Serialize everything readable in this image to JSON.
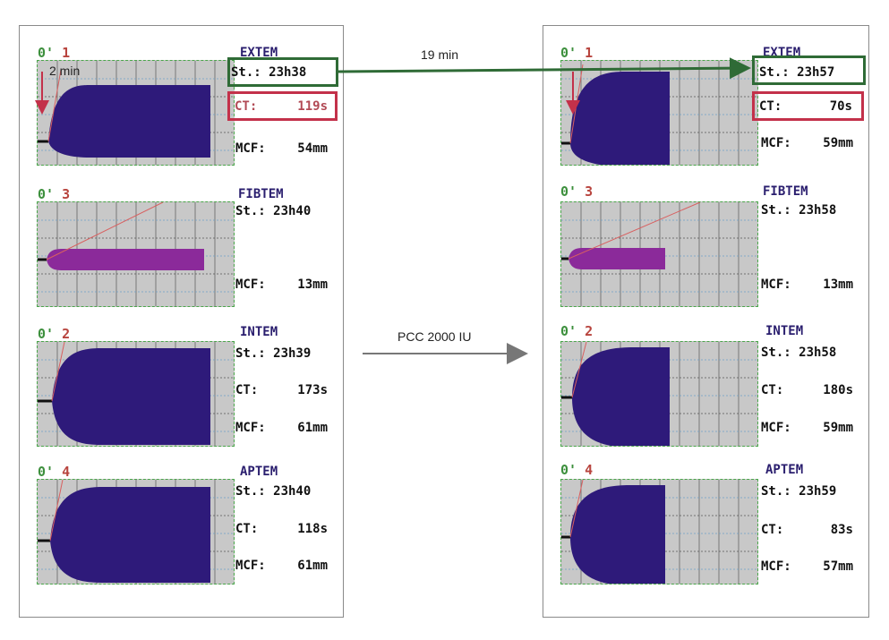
{
  "annotations": {
    "interval": "19 min",
    "treatment": "PCC 2000 IU",
    "delay": "2 min"
  },
  "colors": {
    "clot": "#2e1a7a",
    "fibtem_clot": "#8b2a9a",
    "grid_bg": "#c8c8c8",
    "test_title": "#2a1e6e",
    "start_highlight": "#2f6b36",
    "ct_highlight": "#c3314a",
    "trace_header": "#b8443e"
  },
  "panels": {
    "before": {
      "traces": [
        {
          "header": "1",
          "test": "EXTEM",
          "start": "St.: 23h38",
          "ct_label": "CT:",
          "ct_value": "119s",
          "mcf_label": "MCF:",
          "mcf_value": "54mm"
        },
        {
          "header": "3",
          "test": "FIBTEM",
          "start": "St.: 23h40",
          "mcf_label": "MCF:",
          "mcf_value": "13mm"
        },
        {
          "header": "2",
          "test": "INTEM",
          "start": "St.: 23h39",
          "ct_label": "CT:",
          "ct_value": "173s",
          "mcf_label": "MCF:",
          "mcf_value": "61mm"
        },
        {
          "header": "4",
          "test": "APTEM",
          "start": "St.: 23h40",
          "ct_label": "CT:",
          "ct_value": "118s",
          "mcf_label": "MCF:",
          "mcf_value": "61mm"
        }
      ]
    },
    "after": {
      "traces": [
        {
          "header": "1",
          "test": "EXTEM",
          "start": "St.: 23h57",
          "ct_label": "CT:",
          "ct_value": "70s",
          "mcf_label": "MCF:",
          "mcf_value": "59mm"
        },
        {
          "header": "3",
          "test": "FIBTEM",
          "start": "St.: 23h58",
          "mcf_label": "MCF:",
          "mcf_value": "13mm"
        },
        {
          "header": "2",
          "test": "INTEM",
          "start": "St.: 23h58",
          "ct_label": "CT:",
          "ct_value": "180s",
          "mcf_label": "MCF:",
          "mcf_value": "59mm"
        },
        {
          "header": "4",
          "test": "APTEM",
          "start": "St.: 23h59",
          "ct_label": "CT:",
          "ct_value": "83s",
          "mcf_label": "MCF:",
          "mcf_value": "57mm"
        }
      ]
    }
  }
}
